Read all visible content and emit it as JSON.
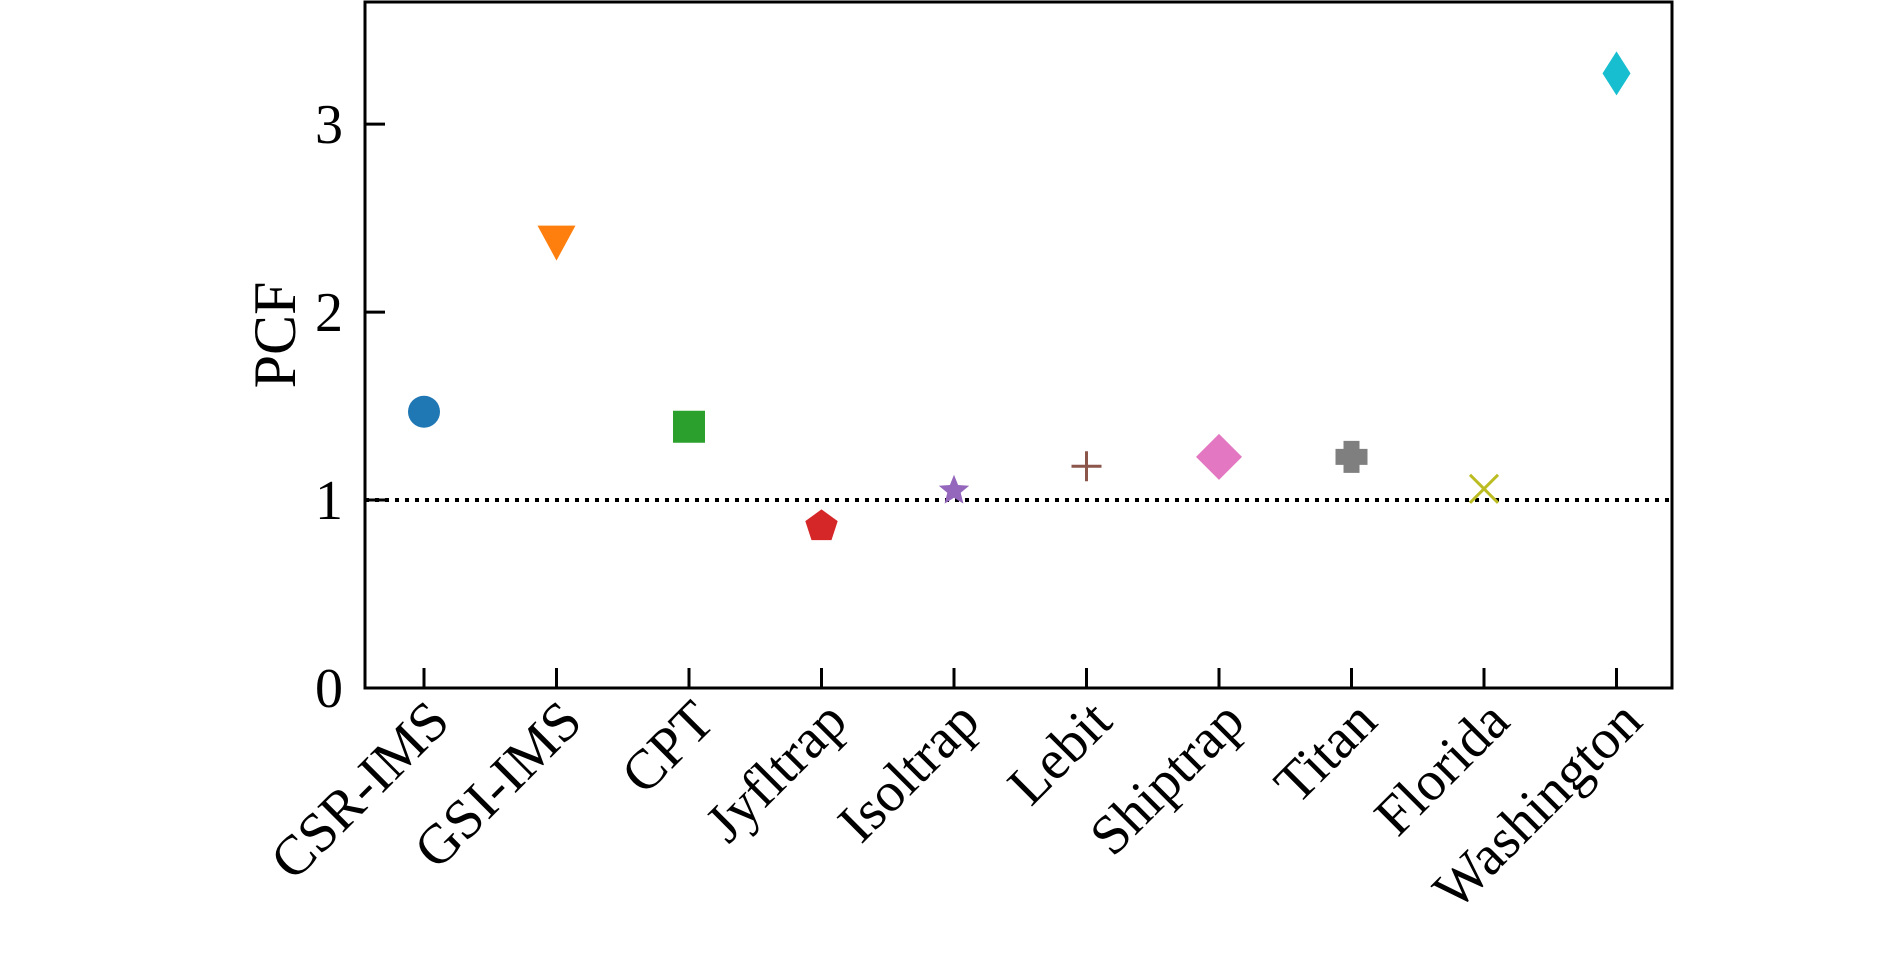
{
  "chart_data": {
    "type": "scatter",
    "title": "",
    "xlabel": "",
    "ylabel": "PCF",
    "categories": [
      "CSR-IMS",
      "GSI-IMS",
      "CPT",
      "Jyfltrap",
      "Isoltrap",
      "Lebit",
      "Shiptrap",
      "Titan",
      "Florida",
      "Washington"
    ],
    "values": [
      1.47,
      2.37,
      1.39,
      0.86,
      1.05,
      1.18,
      1.23,
      1.23,
      1.06,
      3.27
    ],
    "markers": [
      "circle",
      "triangle-down",
      "square",
      "pentagon",
      "star",
      "plus",
      "diamond",
      "thick-plus",
      "x",
      "thin-diamond"
    ],
    "colors": [
      "#1f77b4",
      "#ff7f0e",
      "#2ca02c",
      "#d62728",
      "#9467bd",
      "#8c564b",
      "#e377c2",
      "#7f7f7f",
      "#bcbd22",
      "#17becf"
    ],
    "ylim": [
      0,
      3.65
    ],
    "yticks": [
      "0",
      "1",
      "2",
      "3"
    ],
    "reference_line": {
      "y": 1,
      "style": "dotted",
      "color": "#000000"
    },
    "grid": false,
    "legend": "none"
  }
}
